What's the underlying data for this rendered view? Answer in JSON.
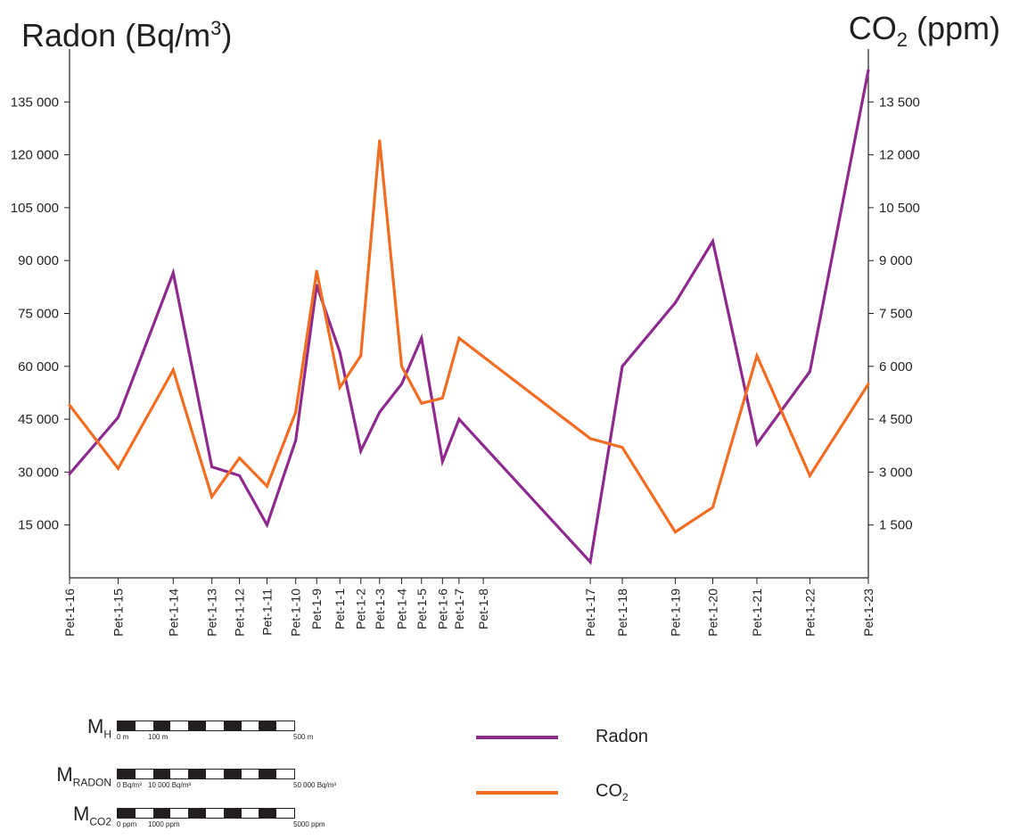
{
  "titles": {
    "left_main": "Radon (Bq/m",
    "left_sup": "3",
    "left_end": ")",
    "right_main": "CO",
    "right_sub": "2",
    "right_end": " (ppm)"
  },
  "colors": {
    "radon": "#8e2a8e",
    "co2": "#f26c22",
    "axis": "#231f20"
  },
  "chart_data": {
    "type": "line",
    "x_labels": [
      "Pet-1-16",
      "Pet-1-15",
      "Pet-1-14",
      "Pet-1-13",
      "Pet-1-12",
      "Pet-1-11",
      "Pet-1-10",
      "Pet-1-9",
      "Pet-1-1",
      "Pet-1-2",
      "Pet-1-3",
      "Pet-1-4",
      "Pet-1-5",
      "Pet-1-6",
      "Pet-1-7",
      "Pet-1-8",
      "Pet-1-17",
      "Pet-1-18",
      "Pet-1-19",
      "Pet-1-20",
      "Pet-1-21",
      "Pet-1-22",
      "Pet-1-23"
    ],
    "x_distance_m": [
      0,
      44,
      94,
      129,
      154,
      179,
      205,
      224,
      245,
      264,
      281,
      301,
      319,
      338,
      353,
      375,
      472,
      501,
      549,
      583,
      623,
      671,
      724
    ],
    "series": [
      {
        "name": "Radon",
        "axis": "left",
        "values": [
          29500,
          45500,
          86500,
          31500,
          29000,
          15000,
          39000,
          83000,
          64000,
          36000,
          47000,
          55000,
          68000,
          33000,
          45000,
          null,
          4500,
          60000,
          78000,
          95500,
          38000,
          58500,
          144000
        ]
      },
      {
        "name": "CO2",
        "axis": "right",
        "values": [
          4900,
          3100,
          5900,
          2300,
          3400,
          2600,
          4700,
          8700,
          5400,
          6300,
          12400,
          6000,
          4950,
          5100,
          6800,
          null,
          3950,
          3700,
          1300,
          2000,
          6300,
          2900,
          5500
        ]
      }
    ],
    "left_axis": {
      "ylim": [
        0,
        150000
      ],
      "ticks": [
        15000,
        30000,
        45000,
        60000,
        75000,
        90000,
        105000,
        120000,
        135000
      ],
      "tick_labels": [
        "15 000",
        "30 000",
        "45 000",
        "60 000",
        "75 000",
        "90 000",
        "105 000",
        "120 000",
        "135 000"
      ]
    },
    "right_axis": {
      "ylim": [
        0,
        15000
      ],
      "ticks": [
        1500,
        3000,
        4500,
        6000,
        7500,
        9000,
        10500,
        12000,
        13500
      ],
      "tick_labels": [
        "1 500",
        "3 000",
        "4 500",
        "6 000",
        "7 500",
        "9 000",
        "10 500",
        "12 000",
        "13 500"
      ]
    },
    "grid": false,
    "legend_position": "bottom-right"
  },
  "legend": [
    {
      "label": "Radon",
      "label_sub": "",
      "color": "#8e2a8e"
    },
    {
      "label": "CO",
      "label_sub": "2",
      "color": "#f26c22"
    }
  ],
  "scale_bars": [
    {
      "label": "M",
      "sub": "H",
      "t0": "0 m",
      "t1": "100 m",
      "t2": "500 m"
    },
    {
      "label": "M",
      "sub": "RADON",
      "t0": "0 Bq/m³",
      "t1": "10 000 Bq/m³",
      "t2": "50 000 Bq/m³"
    },
    {
      "label": "M",
      "sub": "CO2",
      "t0": "0 ppm",
      "t1": "1000 ppm",
      "t2": "5000 ppm"
    }
  ]
}
